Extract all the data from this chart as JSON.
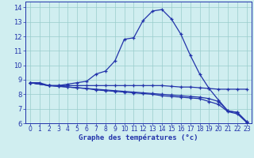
{
  "title": "Graphe des températures (°c)",
  "bg_color": "#d0eef0",
  "line_color": "#2233aa",
  "grid_color": "#99cccc",
  "xlim": [
    -0.5,
    23.5
  ],
  "ylim": [
    6,
    14.4
  ],
  "xticks": [
    0,
    1,
    2,
    3,
    4,
    5,
    6,
    7,
    8,
    9,
    10,
    11,
    12,
    13,
    14,
    15,
    16,
    17,
    18,
    19,
    20,
    21,
    22,
    23
  ],
  "yticks": [
    6,
    7,
    8,
    9,
    10,
    11,
    12,
    13,
    14
  ],
  "line1_x": [
    0,
    1,
    2,
    3,
    4,
    5,
    6,
    7,
    8,
    9,
    10,
    11,
    12,
    13,
    14,
    15,
    16,
    17,
    18,
    19,
    20,
    21,
    22,
    23
  ],
  "line1_y": [
    8.8,
    8.8,
    8.6,
    8.6,
    8.7,
    8.8,
    8.9,
    9.4,
    9.6,
    10.3,
    11.8,
    11.9,
    13.1,
    13.75,
    13.85,
    13.2,
    12.15,
    10.7,
    9.4,
    8.4,
    7.6,
    6.85,
    6.75,
    6.1
  ],
  "line2_x": [
    0,
    2,
    3,
    4,
    5,
    6,
    7,
    8,
    9,
    10,
    11,
    12,
    13,
    14,
    15,
    16,
    17,
    18,
    19,
    20,
    21,
    22,
    23
  ],
  "line2_y": [
    8.8,
    8.6,
    8.6,
    8.6,
    8.6,
    8.6,
    8.6,
    8.6,
    8.6,
    8.6,
    8.6,
    8.6,
    8.6,
    8.6,
    8.55,
    8.5,
    8.5,
    8.45,
    8.4,
    8.35,
    8.35,
    8.35,
    8.35
  ],
  "line3_x": [
    0,
    2,
    3,
    4,
    5,
    6,
    7,
    8,
    9,
    10,
    11,
    12,
    13,
    14,
    15,
    16,
    17,
    18,
    19,
    20,
    21,
    22,
    23
  ],
  "line3_y": [
    8.8,
    8.6,
    8.55,
    8.5,
    8.45,
    8.4,
    8.35,
    8.3,
    8.25,
    8.2,
    8.15,
    8.1,
    8.05,
    8.0,
    7.95,
    7.9,
    7.85,
    7.8,
    7.7,
    7.5,
    6.85,
    6.75,
    6.1
  ],
  "line4_x": [
    0,
    2,
    3,
    4,
    5,
    6,
    7,
    8,
    9,
    10,
    11,
    12,
    13,
    14,
    15,
    16,
    17,
    18,
    19,
    20,
    21,
    22,
    23
  ],
  "line4_y": [
    8.8,
    8.6,
    8.55,
    8.5,
    8.45,
    8.4,
    8.3,
    8.25,
    8.2,
    8.15,
    8.1,
    8.05,
    8.0,
    7.9,
    7.85,
    7.8,
    7.75,
    7.7,
    7.5,
    7.3,
    6.8,
    6.65,
    6.05
  ]
}
